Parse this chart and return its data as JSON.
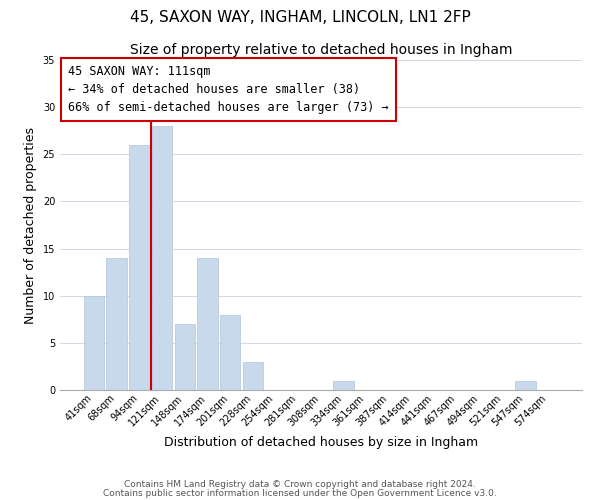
{
  "title": "45, SAXON WAY, INGHAM, LINCOLN, LN1 2FP",
  "subtitle": "Size of property relative to detached houses in Ingham",
  "xlabel": "Distribution of detached houses by size in Ingham",
  "ylabel": "Number of detached properties",
  "bar_labels": [
    "41sqm",
    "68sqm",
    "94sqm",
    "121sqm",
    "148sqm",
    "174sqm",
    "201sqm",
    "228sqm",
    "254sqm",
    "281sqm",
    "308sqm",
    "334sqm",
    "361sqm",
    "387sqm",
    "414sqm",
    "441sqm",
    "467sqm",
    "494sqm",
    "521sqm",
    "547sqm",
    "574sqm"
  ],
  "bar_values": [
    10,
    14,
    26,
    28,
    7,
    14,
    8,
    3,
    0,
    0,
    0,
    1,
    0,
    0,
    0,
    0,
    0,
    0,
    0,
    1,
    0
  ],
  "bar_color": "#c9d9ec",
  "bar_edge_color": "#afc5de",
  "vline_color": "#cc0000",
  "vline_x_index": 2.5,
  "annotation_title": "45 SAXON WAY: 111sqm",
  "annotation_line1": "← 34% of detached houses are smaller (38)",
  "annotation_line2": "66% of semi-detached houses are larger (73) →",
  "annotation_box_color": "#ffffff",
  "annotation_box_edge": "#cc0000",
  "ylim": [
    0,
    35
  ],
  "yticks": [
    0,
    5,
    10,
    15,
    20,
    25,
    30,
    35
  ],
  "footer1": "Contains HM Land Registry data © Crown copyright and database right 2024.",
  "footer2": "Contains public sector information licensed under the Open Government Licence v3.0.",
  "bg_color": "#ffffff",
  "grid_color": "#d0d8e8",
  "title_fontsize": 11,
  "subtitle_fontsize": 10,
  "axis_label_fontsize": 9,
  "tick_fontsize": 7,
  "annotation_fontsize": 8.5,
  "footer_fontsize": 6.5
}
